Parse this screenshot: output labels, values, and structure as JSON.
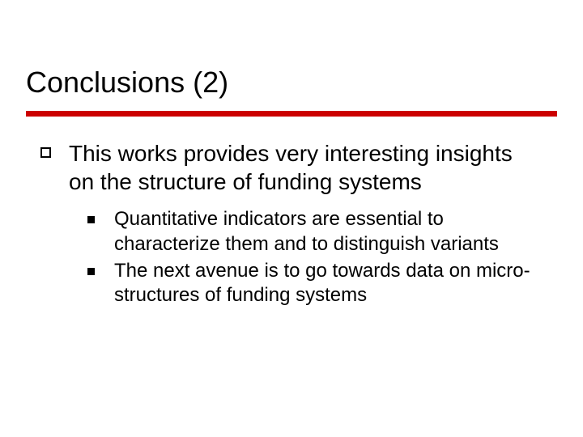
{
  "title": "Conclusions (2)",
  "rule_color": "#cc0000",
  "text_color": "#000000",
  "background_color": "#ffffff",
  "title_fontsize": 36,
  "body_fontsize": 28,
  "sub_fontsize": 24,
  "bullets": {
    "main": {
      "text": "This works provides very interesting insights on the structure of funding systems",
      "subs": [
        "Quantitative indicators are essential to characterize them and to distinguish variants",
        "The next avenue is to go towards data on micro-structures of funding systems"
      ]
    }
  }
}
